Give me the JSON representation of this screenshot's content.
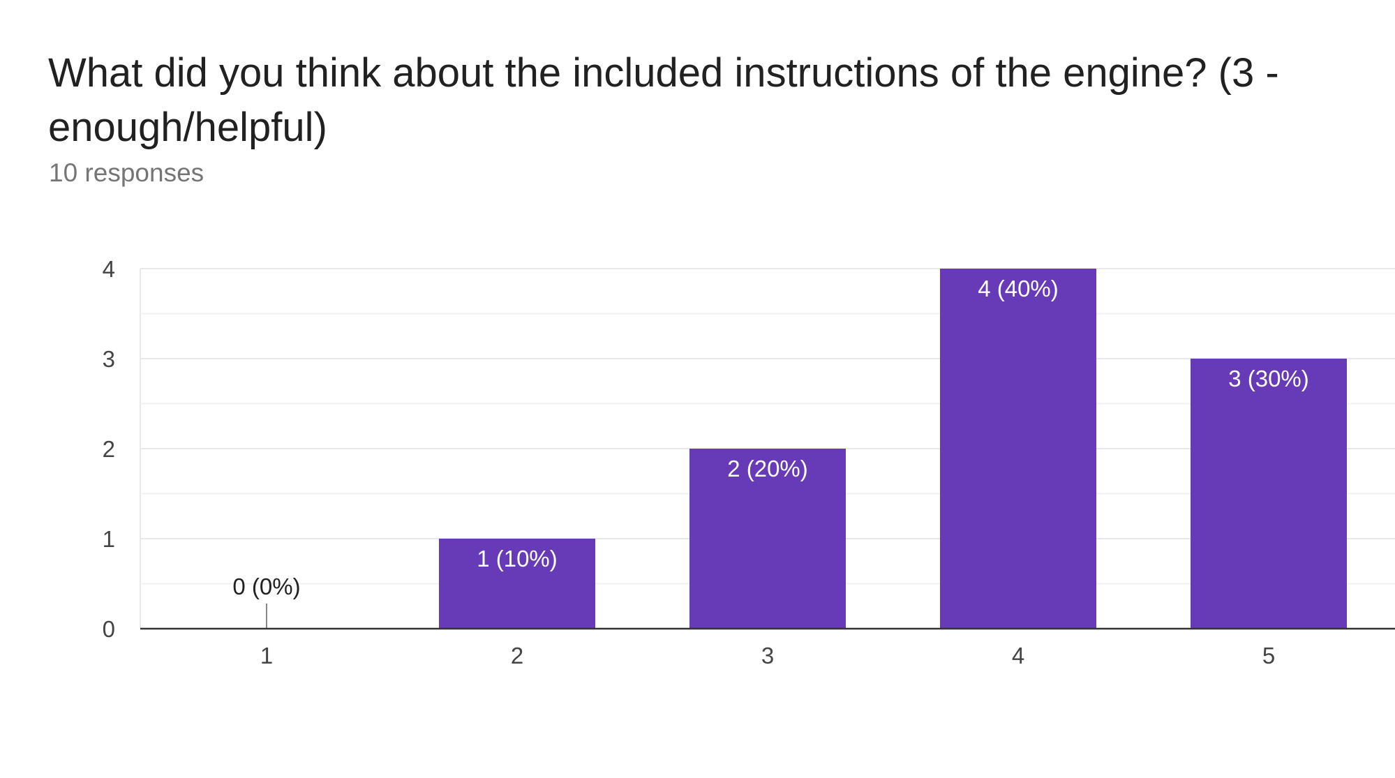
{
  "question": {
    "title": "What did you think about the included instructions of the engine? (3 - enough/helpful)",
    "responses": "10 responses"
  },
  "colors": {
    "bar": "#673ab7",
    "gridline": "#e8e8e8",
    "baseline": "#333333",
    "label_inside": "#ffffff",
    "label_outside": "#222222"
  },
  "chart_data": {
    "type": "bar",
    "categories": [
      "1",
      "2",
      "3",
      "4",
      "5"
    ],
    "values": [
      0,
      1,
      2,
      4,
      3
    ],
    "data_labels": [
      "0 (0%)",
      "1 (10%)",
      "2 (20%)",
      "4 (40%)",
      "3 (30%)"
    ],
    "yticks": [
      0,
      1,
      2,
      3,
      4
    ],
    "ylim": [
      0,
      4
    ],
    "minor_gridlines": true,
    "title": "",
    "xlabel": "",
    "ylabel": ""
  }
}
